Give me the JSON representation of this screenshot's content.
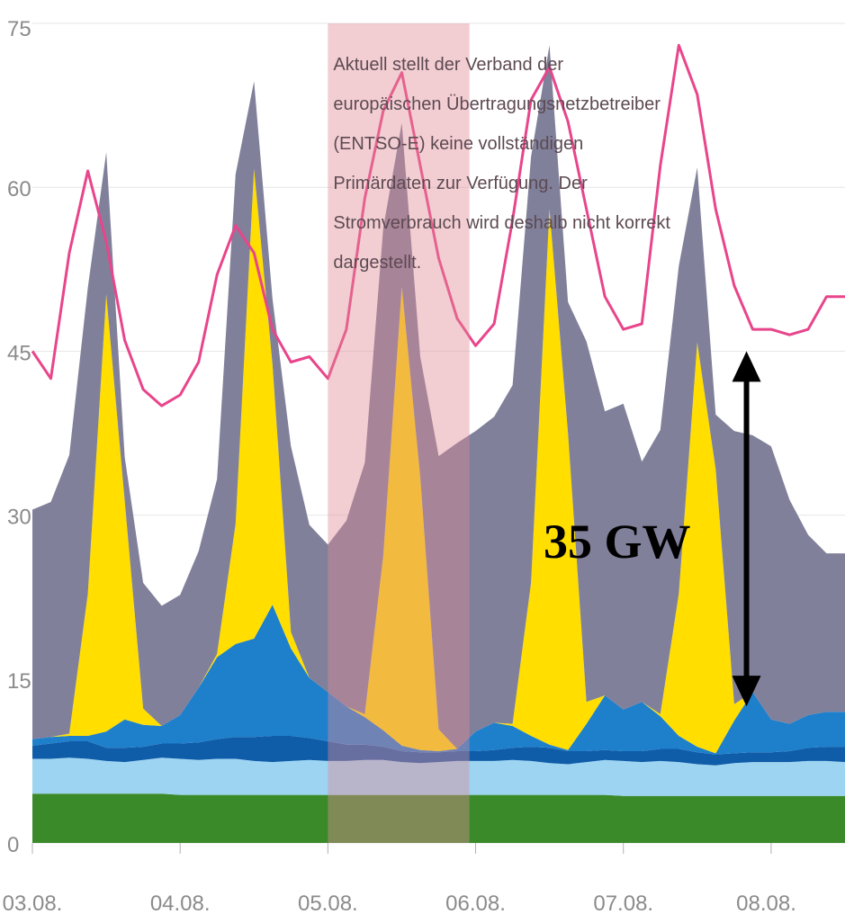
{
  "chart_data": {
    "type": "area",
    "title": "",
    "xlabel": "",
    "ylabel": "",
    "ylim": [
      0,
      75
    ],
    "xlim": [
      "2024-08-03T00:00",
      "2024-08-08T12:00"
    ],
    "y_ticks": [
      0,
      15,
      30,
      45,
      60,
      75
    ],
    "y_tick_labels": [
      "0",
      "15",
      "30",
      "45",
      "60",
      "75"
    ],
    "x_ticks": [
      "2024-08-03T00:00",
      "2024-08-04T00:00",
      "2024-08-05T00:00",
      "2024-08-06T00:00",
      "2024-08-07T00:00",
      "2024-08-08T00:00"
    ],
    "x_tick_labels": [
      "03.08.",
      "04.08.",
      "05.08.",
      "06.08.",
      "07.08.",
      "08.08."
    ],
    "grid": "horizontal",
    "legend": "none",
    "colors": {
      "green": "#3a8a2a",
      "light_blue": "#9cd4f2",
      "dark_blue": "#0f5ca8",
      "mid_blue": "#1e7fcb",
      "yellow": "#ffde00",
      "gray": "#80809b",
      "pink": "#e8458b",
      "highlight": "#e08a96",
      "arrow": "#000000"
    },
    "x": [
      "2024-08-03T00:00",
      "2024-08-03T03:00",
      "2024-08-03T06:00",
      "2024-08-03T09:00",
      "2024-08-03T12:00",
      "2024-08-03T15:00",
      "2024-08-03T18:00",
      "2024-08-03T21:00",
      "2024-08-04T00:00",
      "2024-08-04T03:00",
      "2024-08-04T06:00",
      "2024-08-04T09:00",
      "2024-08-04T12:00",
      "2024-08-04T15:00",
      "2024-08-04T18:00",
      "2024-08-04T21:00",
      "2024-08-05T00:00",
      "2024-08-05T03:00",
      "2024-08-05T06:00",
      "2024-08-05T09:00",
      "2024-08-05T12:00",
      "2024-08-05T15:00",
      "2024-08-05T18:00",
      "2024-08-05T21:00",
      "2024-08-06T00:00",
      "2024-08-06T03:00",
      "2024-08-06T06:00",
      "2024-08-06T09:00",
      "2024-08-06T12:00",
      "2024-08-06T15:00",
      "2024-08-06T18:00",
      "2024-08-06T21:00",
      "2024-08-07T00:00",
      "2024-08-07T03:00",
      "2024-08-07T06:00",
      "2024-08-07T09:00",
      "2024-08-07T12:00",
      "2024-08-07T15:00",
      "2024-08-07T18:00",
      "2024-08-07T21:00",
      "2024-08-08T00:00",
      "2024-08-08T03:00",
      "2024-08-08T06:00",
      "2024-08-08T09:00",
      "2024-08-08T12:00"
    ],
    "series": [
      {
        "key": "green",
        "values": [
          4.5,
          4.5,
          4.5,
          4.5,
          4.5,
          4.5,
          4.5,
          4.5,
          4.4,
          4.4,
          4.4,
          4.4,
          4.4,
          4.4,
          4.4,
          4.4,
          4.4,
          4.4,
          4.4,
          4.4,
          4.4,
          4.4,
          4.4,
          4.4,
          4.4,
          4.4,
          4.4,
          4.4,
          4.4,
          4.4,
          4.4,
          4.4,
          4.3,
          4.3,
          4.3,
          4.3,
          4.3,
          4.3,
          4.3,
          4.3,
          4.3,
          4.3,
          4.3,
          4.3,
          4.3
        ]
      },
      {
        "key": "light_blue",
        "values": [
          3.2,
          3.2,
          3.3,
          3.2,
          3.0,
          2.9,
          3.1,
          3.3,
          3.3,
          3.2,
          3.3,
          3.3,
          3.1,
          3.0,
          3.1,
          3.2,
          3.1,
          3.1,
          3.2,
          3.2,
          3.0,
          2.9,
          3.0,
          3.1,
          3.1,
          3.1,
          3.2,
          3.1,
          2.9,
          2.8,
          3.0,
          3.2,
          3.2,
          3.1,
          3.2,
          3.1,
          2.9,
          2.8,
          3.0,
          3.1,
          3.1,
          3.1,
          3.2,
          3.2,
          3.1
        ]
      },
      {
        "key": "dark_blue",
        "values": [
          1.2,
          1.4,
          1.5,
          1.6,
          1.2,
          1.3,
          1.2,
          1.3,
          1.4,
          1.6,
          1.8,
          2.0,
          2.2,
          2.4,
          2.3,
          2.0,
          1.8,
          1.5,
          1.4,
          1.2,
          1.0,
          1.0,
          0.9,
          0.9,
          0.9,
          1.0,
          1.1,
          1.3,
          1.4,
          1.2,
          1.0,
          0.9,
          0.9,
          1.0,
          1.1,
          1.2,
          1.1,
          1.0,
          0.9,
          0.9,
          0.9,
          1.0,
          1.2,
          1.3,
          1.4
        ]
      },
      {
        "key": "mid_blue",
        "values": [
          0.6,
          0.6,
          0.5,
          0.5,
          1.5,
          2.6,
          2.0,
          1.6,
          2.6,
          5.0,
          7.5,
          8.5,
          9.0,
          12.0,
          8.0,
          5.5,
          4.5,
          3.5,
          2.5,
          1.5,
          0.5,
          0.2,
          0.1,
          0.2,
          1.8,
          2.5,
          2.0,
          1.0,
          0.3,
          0.1,
          2.5,
          5.0,
          3.8,
          4.5,
          3.0,
          1.2,
          0.5,
          0.1,
          3.0,
          5.5,
          3.0,
          2.5,
          3.0,
          3.2,
          3.2
        ]
      },
      {
        "key": "yellow",
        "values": [
          0.0,
          0.0,
          0.2,
          13.0,
          40.0,
          20.0,
          1.5,
          0.0,
          0.0,
          0.0,
          0.3,
          11.0,
          43.0,
          22.0,
          1.5,
          0.0,
          0.0,
          0.0,
          0.3,
          16.0,
          42.0,
          25.0,
          2.0,
          0.0,
          0.0,
          0.0,
          0.2,
          14.0,
          49.0,
          29.0,
          2.0,
          0.0,
          0.0,
          0.0,
          0.2,
          13.0,
          37.0,
          26.0,
          1.5,
          0.0,
          0.0,
          0.0,
          0.0,
          0.0,
          0.0
        ]
      },
      {
        "key": "gray",
        "values": [
          21.0,
          21.5,
          25.5,
          28.0,
          13.0,
          4.0,
          11.5,
          11.0,
          11.0,
          12.5,
          16.0,
          32.0,
          8.0,
          6.0,
          17.0,
          14.0,
          13.5,
          17.0,
          23.0,
          30.0,
          15.0,
          11.0,
          25.0,
          28.0,
          27.5,
          28.0,
          31.0,
          39.0,
          15.0,
          12.0,
          33.0,
          26.0,
          28.0,
          22.0,
          26.0,
          30.0,
          16.0,
          5.0,
          25.0,
          23.5,
          25.0,
          20.5,
          16.5,
          14.5,
          14.5
        ]
      }
    ],
    "line": {
      "key": "pink",
      "values": [
        45.0,
        42.5,
        54.0,
        61.5,
        55.0,
        46.0,
        41.5,
        40.0,
        41.0,
        44.0,
        52.0,
        56.5,
        54.0,
        47.0,
        44.0,
        44.5,
        42.5,
        47.0,
        59.0,
        67.0,
        70.5,
        62.0,
        53.5,
        48.0,
        45.5,
        47.5,
        57.0,
        68.0,
        71.0,
        66.0,
        58.0,
        50.0,
        47.0,
        47.5,
        62.0,
        73.0,
        68.5,
        58.0,
        51.0,
        47.0,
        47.0,
        46.5,
        47.0,
        50.0,
        50.0
      ]
    },
    "highlight": {
      "x_start": "2024-08-05T00:00",
      "x_end": "2024-08-05T23:00",
      "text_lines": [
        "Aktuell stellt der Verband der",
        "europäischen Übertragungsnetzbetreiber",
        "(ENTSO-E) keine vollständigen",
        "Primärdaten zur Verfügung. Der",
        "Stromverbrauch wird deshalb nicht korrekt",
        "dargestellt."
      ]
    },
    "arrow_annotation": {
      "label": "35 GW",
      "x": "2024-08-07T20:00",
      "y_from": 12.5,
      "y_to": 45.0
    }
  }
}
